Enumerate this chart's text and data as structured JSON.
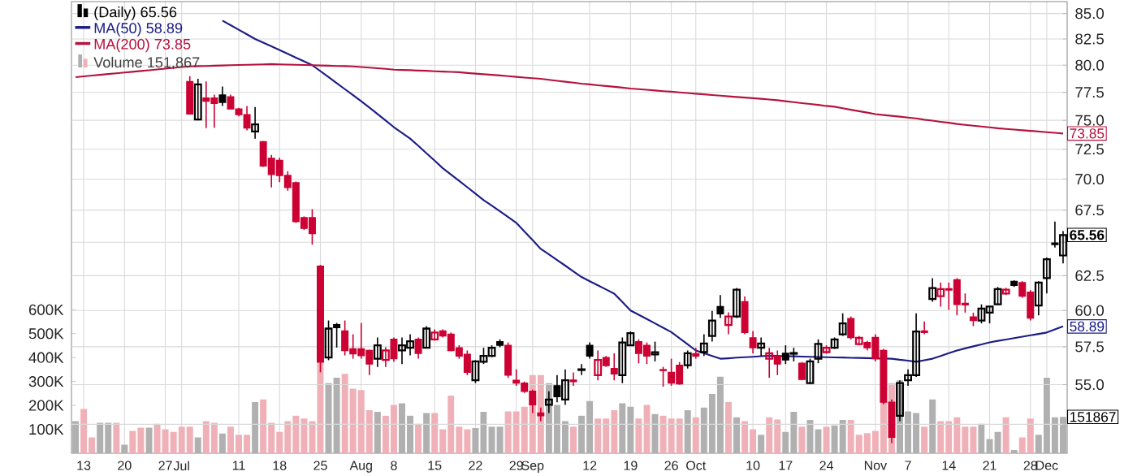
{
  "chart_data": {
    "type": "candlestick",
    "categories": [
      null,
      "13",
      null,
      null,
      null,
      null,
      "20",
      null,
      null,
      null,
      null,
      "27",
      null,
      "Jul",
      null,
      null,
      null,
      null,
      null,
      null,
      "11",
      null,
      null,
      null,
      null,
      "18",
      null,
      null,
      null,
      null,
      "25",
      null,
      null,
      null,
      null,
      "Aug",
      null,
      null,
      null,
      "8",
      null,
      null,
      null,
      null,
      "15",
      null,
      null,
      null,
      null,
      "22",
      null,
      null,
      null,
      null,
      "29",
      null,
      "Sep",
      null,
      null,
      null,
      null,
      null,
      null,
      "12",
      null,
      null,
      null,
      null,
      "19",
      null,
      null,
      null,
      null,
      "26",
      null,
      null,
      "Oct",
      null,
      null,
      null,
      null,
      null,
      null,
      "10",
      null,
      null,
      null,
      "17",
      null,
      null,
      null,
      null,
      "24",
      null,
      null,
      null,
      null,
      null,
      "Nov",
      null,
      null,
      null,
      "7",
      null,
      null,
      null,
      null,
      "14",
      null,
      null,
      null,
      null,
      "21",
      null,
      null,
      null,
      null,
      "28",
      null,
      "Dec",
      null,
      null
    ],
    "y2lim": [
      50.75,
      86.2
    ],
    "y2ticks": [
      {
        "value": 52.5,
        "label": null
      },
      {
        "value": 55,
        "label": "55.0"
      },
      57.5,
      {
        "value": 60,
        "label": "60.0"
      },
      62.5,
      {
        "value": 65,
        "label": null
      },
      67.5,
      {
        "value": 70,
        "label": "70.0"
      },
      72.5,
      {
        "value": 75,
        "label": "75.0"
      },
      77.5,
      {
        "value": 80,
        "label": "80.0"
      },
      82.5,
      {
        "value": 85,
        "label": "85.0"
      }
    ],
    "log": "y2",
    "ylim": [
      0,
      1888000
    ],
    "yticks": [
      {
        "value": 100000,
        "label": "100K"
      },
      {
        "value": 200000,
        "label": "200K"
      },
      {
        "value": 300000,
        "label": "300K"
      },
      {
        "value": 400000,
        "label": "400K"
      },
      {
        "value": 500000,
        "label": "500K"
      },
      {
        "value": 600000,
        "label": "600K"
      }
    ],
    "grid": true,
    "legend": "top left",
    "annotations": [
      "65.56",
      "58.89",
      "73.85",
      "151867"
    ],
    "series": [
      {
        "name": "(Daily) 65.56",
        "axis": "y2",
        "ohlc": [
          null,
          null,
          null,
          null,
          null,
          null,
          null,
          null,
          null,
          null,
          null,
          null,
          null,
          null,
          [
            78.49,
            78.98,
            75.5,
            75.55
          ],
          [
            75.07,
            78.74,
            75.0,
            78.24
          ],
          [
            77.0,
            78.49,
            74.32,
            76.7
          ],
          [
            77.0,
            77.3,
            74.35,
            76.5
          ],
          [
            77.26,
            78.05,
            76.27,
            76.6
          ],
          [
            77.1,
            77.3,
            75.97,
            76.0
          ],
          [
            76.0,
            76.1,
            75.35,
            75.5
          ],
          [
            75.5,
            76.27,
            74.11,
            74.32
          ],
          [
            74.01,
            76.17,
            73.41,
            74.64
          ],
          [
            73.14,
            73.2,
            71.0,
            71.08
          ],
          [
            71.73,
            72.01,
            69.32,
            70.38
          ],
          [
            71.55,
            71.78,
            69.75,
            70.3
          ],
          [
            70.3,
            70.65,
            69.05,
            69.32
          ],
          [
            69.7,
            69.8,
            66.5,
            66.6
          ],
          [
            66.9,
            67.0,
            65.95,
            66.07
          ],
          [
            66.9,
            67.57,
            64.82,
            65.66
          ],
          [
            63.2,
            63.3,
            55.8,
            56.47
          ],
          [
            56.78,
            59.3,
            56.6,
            58.74
          ],
          [
            59.02,
            59.13,
            57.45,
            58.8
          ],
          [
            58.58,
            59.3,
            56.92,
            57.25
          ],
          [
            57.36,
            58.35,
            56.7,
            57.03
          ],
          [
            57.36,
            59.13,
            56.7,
            56.9
          ],
          [
            57.25,
            57.3,
            55.62,
            56.35
          ],
          [
            56.7,
            58.13,
            56.16,
            57.6
          ],
          [
            56.62,
            57.47,
            56.16,
            57.25
          ],
          [
            58.0,
            58.13,
            56.5,
            56.7
          ],
          [
            57.25,
            58.13,
            56.35,
            57.6
          ],
          [
            57.43,
            58.35,
            56.92,
            57.87
          ],
          [
            58.0,
            58.13,
            56.7,
            57.06
          ],
          [
            57.43,
            58.91,
            57.4,
            58.74
          ],
          [
            58.0,
            58.69,
            57.9,
            58.47
          ],
          [
            58.58,
            58.69,
            58.13,
            58.24
          ],
          [
            58.35,
            58.47,
            57.2,
            57.25
          ],
          [
            57.43,
            57.6,
            56.7,
            56.88
          ],
          [
            56.99,
            57.25,
            55.62,
            55.8
          ],
          [
            55.28,
            56.6,
            55.1,
            56.52
          ],
          [
            56.5,
            57.43,
            56.35,
            56.88
          ],
          [
            56.88,
            57.6,
            56.8,
            57.43
          ],
          [
            57.85,
            58.0,
            57.47,
            57.6
          ],
          [
            57.6,
            57.79,
            55.44,
            55.62
          ],
          [
            55.28,
            56.0,
            54.93,
            55.1
          ],
          [
            55.1,
            55.2,
            54.47,
            54.57
          ],
          [
            54.57,
            54.68,
            53.2,
            53.71
          ],
          [
            53.2,
            53.54,
            52.7,
            53.03
          ],
          [
            53.71,
            54.57,
            53.2,
            54.05
          ],
          [
            54.93,
            55.62,
            53.88,
            54.23
          ],
          [
            54.05,
            56.0,
            53.71,
            55.28
          ],
          [
            55.3,
            55.8,
            54.93,
            55.2
          ],
          [
            55.95,
            56.35,
            55.62,
            56.0
          ],
          [
            57.6,
            57.79,
            56.7,
            56.88
          ],
          [
            55.62,
            57.25,
            55.28,
            56.62
          ],
          [
            56.78,
            56.88,
            56.16,
            56.24
          ],
          [
            56.05,
            57.06,
            55.28,
            55.7
          ],
          [
            55.62,
            58.13,
            55.1,
            57.79
          ],
          [
            57.6,
            58.54,
            57.57,
            58.43
          ],
          [
            57.85,
            58.0,
            56.39,
            57.06
          ],
          [
            57.6,
            57.79,
            56.35,
            56.88
          ],
          [
            56.99,
            57.85,
            56.52,
            57.13
          ],
          [
            55.98,
            56.16,
            54.87,
            55.92
          ],
          [
            55.8,
            56.7,
            54.93,
            55.1
          ],
          [
            56.27,
            56.48,
            55.0,
            55.05
          ],
          [
            56.27,
            57.25,
            56.05,
            57.06
          ],
          [
            57.03,
            57.43,
            56.7,
            56.88
          ],
          [
            57.14,
            58.35,
            56.88,
            57.72
          ],
          [
            58.24,
            59.97,
            57.85,
            59.3
          ],
          [
            60.27,
            61.1,
            59.47,
            59.76
          ],
          [
            58.99,
            59.87,
            58.35,
            59.58
          ],
          [
            59.58,
            61.6,
            59.47,
            61.49
          ],
          [
            60.62,
            61.0,
            58.35,
            58.47
          ],
          [
            58.1,
            58.58,
            57.06,
            57.43
          ],
          [
            57.43,
            58.13,
            56.88,
            57.72
          ],
          [
            56.7,
            57.43,
            55.44,
            57.06
          ],
          [
            56.88,
            57.25,
            55.62,
            56.35
          ],
          [
            57.06,
            57.6,
            56.35,
            56.62
          ],
          [
            57.03,
            57.43,
            56.52,
            57.08
          ],
          [
            56.4,
            56.48,
            55.28,
            55.34
          ],
          [
            55.1,
            56.7,
            55.05,
            56.52
          ],
          [
            56.7,
            58.0,
            56.4,
            57.7
          ],
          [
            57.14,
            57.6,
            57.03,
            57.43
          ],
          [
            57.43,
            58.13,
            57.36,
            58.0
          ],
          [
            58.35,
            59.8,
            58.24,
            59.1
          ],
          [
            59.44,
            59.58,
            58.0,
            58.13
          ],
          [
            57.68,
            58.24,
            57.6,
            58.1
          ],
          [
            57.79,
            57.9,
            57.25,
            57.43
          ],
          [
            58.13,
            58.35,
            56.52,
            56.7
          ],
          [
            57.25,
            57.36,
            53.74,
            53.88
          ],
          [
            53.88,
            54.05,
            51.36,
            51.7
          ],
          [
            53.03,
            55.28,
            52.7,
            55.1
          ],
          [
            55.28,
            56.0,
            54.93,
            55.62
          ],
          [
            55.62,
            59.8,
            55.5,
            58.54
          ],
          [
            58.58,
            59.23,
            58.35,
            58.47
          ],
          [
            60.82,
            62.32,
            60.62,
            61.6
          ],
          [
            61.02,
            62.0,
            60.27,
            61.52
          ],
          [
            61.55,
            62.0,
            60.05,
            61.45
          ],
          [
            62.2,
            62.32,
            59.66,
            60.43
          ],
          [
            60.5,
            61.21,
            59.85,
            60.4
          ],
          [
            59.55,
            59.85,
            58.91,
            59.3
          ],
          [
            59.3,
            60.43,
            59.1,
            60.13
          ],
          [
            59.85,
            60.3,
            59.1,
            60.27
          ],
          [
            60.43,
            61.68,
            60.4,
            61.52
          ],
          [
            61.21,
            61.62,
            61.1,
            61.48
          ],
          [
            62.08,
            62.16,
            61.68,
            61.8
          ],
          [
            62.0,
            62.1,
            60.9,
            61.02
          ],
          [
            61.3,
            61.45,
            59.3,
            59.47
          ],
          [
            60.35,
            62.1,
            59.66,
            62.0
          ],
          [
            62.32,
            63.85,
            61.21,
            63.72
          ],
          [
            64.95,
            66.6,
            64.6,
            64.82
          ],
          [
            64.0,
            65.85,
            63.4,
            65.56
          ]
        ],
        "colors": [
          null,
          null,
          null,
          null,
          null,
          null,
          null,
          null,
          null,
          null,
          null,
          null,
          null,
          null,
          "#cc0033",
          "#000000",
          "#cc0033",
          "#cc0033",
          "#000000",
          "#cc0033",
          "#cc0033",
          "#cc0033",
          "#000000",
          "#cc0033",
          "#cc0033",
          "#cc0033",
          "#cc0033",
          "#cc0033",
          "#cc0033",
          "#cc0033",
          "#cc0033",
          "#000000",
          "#000000",
          "#cc0033",
          "#cc0033",
          "#cc0033",
          "#cc0033",
          "#000000",
          "#cc0033",
          "#cc0033",
          "#000000",
          "#000000",
          "#cc0033",
          "#000000",
          "#cc0033",
          "#cc0033",
          "#cc0033",
          "#cc0033",
          "#cc0033",
          "#000000",
          "#000000",
          "#000000",
          "#000000",
          "#cc0033",
          "#cc0033",
          "#cc0033",
          "#cc0033",
          "#cc0033",
          "#000000",
          "#000000",
          "#000000",
          "#cc0033",
          "#000000",
          "#000000",
          "#cc0033",
          "#cc0033",
          "#cc0033",
          "#000000",
          "#000000",
          "#cc0033",
          "#cc0033",
          "#000000",
          "#cc0033",
          "#cc0033",
          "#cc0033",
          "#000000",
          "#cc0033",
          "#000000",
          "#000000",
          "#000000",
          "#cc0033",
          "#000000",
          "#cc0033",
          "#cc0033",
          "#000000",
          "#cc0033",
          "#cc0033",
          "#000000",
          "#000000",
          "#cc0033",
          "#000000",
          "#000000",
          "#cc0033",
          "#000000",
          "#000000",
          "#cc0033",
          "#cc0033",
          "#cc0033",
          "#cc0033",
          "#cc0033",
          "#cc0033",
          "#000000",
          "#000000",
          "#000000",
          "#cc0033",
          "#000000",
          "#cc0033",
          "#cc0033",
          "#cc0033",
          "#cc0033",
          "#cc0033",
          "#000000",
          "#000000",
          "#000000",
          "#cc0033",
          "#000000",
          "#cc0033",
          "#cc0033",
          "#000000",
          "#000000",
          "#000000",
          "#000000"
        ]
      },
      {
        "name": "MA(50) 58.89",
        "type": "line",
        "axis": "y2",
        "color": "#1c1c84",
        "values": [
          null,
          null,
          null,
          null,
          null,
          null,
          null,
          null,
          null,
          null,
          null,
          null,
          null,
          null,
          null,
          null,
          null,
          null,
          84.3,
          83.85,
          83.4,
          82.95,
          82.5,
          82.14,
          81.79,
          81.43,
          81.07,
          80.71,
          80.36,
          80.0,
          79.45,
          78.9,
          78.35,
          77.8,
          77.25,
          76.7,
          76.13,
          75.55,
          74.98,
          74.4,
          73.9,
          73.4,
          72.78,
          72.15,
          71.53,
          70.9,
          70.38,
          69.86,
          69.34,
          68.82,
          68.3,
          67.85,
          67.4,
          66.95,
          66.5,
          65.83,
          65.17,
          64.5,
          64.08,
          63.66,
          63.24,
          62.82,
          62.4,
          62.1,
          61.8,
          61.5,
          61.2,
          60.6,
          60.0,
          59.7,
          59.4,
          59.1,
          58.8,
          58.5,
          58.08,
          57.67,
          57.25,
          57.07,
          56.88,
          56.7,
          56.73,
          56.77,
          56.8,
          56.83,
          56.87,
          56.9,
          56.89,
          56.87,
          56.86,
          56.84,
          56.83,
          56.81,
          56.8,
          56.79,
          56.78,
          56.76,
          56.75,
          56.74,
          56.73,
          56.71,
          56.7,
          56.63,
          56.57,
          56.5,
          56.6,
          56.7,
          56.88,
          57.07,
          57.25,
          57.39,
          57.53,
          57.66,
          57.8,
          57.9,
          57.99,
          58.09,
          58.18,
          58.28,
          58.37,
          58.47,
          58.68,
          58.89
        ]
      },
      {
        "name": "MA(200) 73.85",
        "type": "line",
        "axis": "y2",
        "color": "#b5123e",
        "values": [
          78.9,
          78.97,
          79.04,
          79.11,
          79.19,
          79.26,
          79.33,
          79.4,
          79.47,
          79.54,
          79.61,
          79.69,
          79.76,
          79.83,
          79.9,
          79.92,
          79.94,
          79.96,
          79.98,
          80.0,
          80.02,
          80.04,
          80.06,
          80.08,
          80.1,
          80.08,
          80.06,
          80.04,
          80.02,
          80.0,
          79.98,
          79.96,
          79.94,
          79.92,
          79.9,
          79.84,
          79.78,
          79.72,
          79.66,
          79.6,
          79.57,
          79.54,
          79.51,
          79.48,
          79.44,
          79.41,
          79.38,
          79.35,
          79.29,
          79.23,
          79.17,
          79.11,
          79.05,
          78.99,
          78.93,
          78.86,
          78.8,
          78.74,
          78.65,
          78.56,
          78.48,
          78.39,
          78.3,
          78.23,
          78.15,
          78.08,
          78.0,
          77.93,
          77.85,
          77.79,
          77.73,
          77.67,
          77.61,
          77.56,
          77.5,
          77.44,
          77.38,
          77.32,
          77.26,
          77.2,
          77.14,
          77.09,
          77.03,
          76.97,
          76.92,
          76.86,
          76.78,
          76.7,
          76.61,
          76.53,
          76.45,
          76.37,
          76.28,
          76.2,
          76.07,
          75.94,
          75.81,
          75.68,
          75.55,
          75.47,
          75.39,
          75.32,
          75.24,
          75.16,
          75.06,
          74.97,
          74.87,
          74.78,
          74.68,
          74.6,
          74.53,
          74.45,
          74.38,
          74.3,
          74.24,
          74.19,
          74.13,
          74.08,
          74.02,
          73.96,
          73.91,
          73.85
        ]
      },
      {
        "name": "Volume 151,867",
        "type": "bar",
        "values": [
          134000,
          186000,
          66000,
          127000,
          127000,
          127000,
          36000,
          93000,
          107000,
          107000,
          123000,
          100000,
          89000,
          111000,
          111000,
          66000,
          134000,
          127000,
          82000,
          111000,
          77000,
          77000,
          214000,
          225000,
          127000,
          89000,
          134000,
          157000,
          145000,
          134000,
          389000,
          293000,
          316000,
          332000,
          270000,
          264000,
          180000,
          173000,
          157000,
          202000,
          209000,
          157000,
          123000,
          168000,
          168000,
          100000,
          241000,
          111000,
          100000,
          105000,
          173000,
          111000,
          111000,
          175000,
          175000,
          195000,
          327000,
          327000,
          293000,
          202000,
          134000,
          111000,
          157000,
          218000,
          145000,
          145000,
          180000,
          209000,
          195000,
          145000,
          202000,
          164000,
          157000,
          145000,
          145000,
          180000,
          150000,
          191000,
          248000,
          320000,
          214000,
          150000,
          134000,
          100000,
          77000,
          150000,
          141000,
          89000,
          173000,
          111000,
          139000,
          100000,
          111000,
          116000,
          139000,
          139000,
          77000,
          84000,
          93000,
          236000,
          293000,
          305000,
          175000,
          168000,
          111000,
          225000,
          134000,
          134000,
          150000,
          111000,
          111000,
          123000,
          59000,
          89000,
          150000,
          14000,
          66000,
          145000,
          77000,
          316000,
          150000,
          151867
        ],
        "colors": [
          "#b0b0b0",
          "#f0b0b8",
          "#f0b0b8",
          "#b0b0b0",
          "#b0b0b0",
          "#f0b0b8",
          "#b0b0b0",
          "#f0b0b8",
          "#f0b0b8",
          "#b0b0b0",
          "#f0b0b8",
          "#f0b0b8",
          "#f0b0b8",
          "#f0b0b8",
          "#f0b0b8",
          "#b0b0b0",
          "#f0b0b8",
          "#f0b0b8",
          "#b0b0b0",
          "#f0b0b8",
          "#f0b0b8",
          "#f0b0b8",
          "#b0b0b0",
          "#f0b0b8",
          "#f0b0b8",
          "#f0b0b8",
          "#f0b0b8",
          "#f0b0b8",
          "#f0b0b8",
          "#f0b0b8",
          "#f0b0b8",
          "#b0b0b0",
          "#b0b0b0",
          "#f0b0b8",
          "#f0b0b8",
          "#f0b0b8",
          "#f0b0b8",
          "#b0b0b0",
          "#f0b0b8",
          "#f0b0b8",
          "#b0b0b0",
          "#b0b0b0",
          "#f0b0b8",
          "#b0b0b0",
          "#f0b0b8",
          "#f0b0b8",
          "#f0b0b8",
          "#f0b0b8",
          "#f0b0b8",
          "#b0b0b0",
          "#b0b0b0",
          "#b0b0b0",
          "#b0b0b0",
          "#f0b0b8",
          "#f0b0b8",
          "#f0b0b8",
          "#f0b0b8",
          "#f0b0b8",
          "#b0b0b0",
          "#b0b0b0",
          "#b0b0b0",
          "#f0b0b8",
          "#b0b0b0",
          "#b0b0b0",
          "#f0b0b8",
          "#f0b0b8",
          "#f0b0b8",
          "#b0b0b0",
          "#b0b0b0",
          "#f0b0b8",
          "#f0b0b8",
          "#b0b0b0",
          "#f0b0b8",
          "#f0b0b8",
          "#f0b0b8",
          "#b0b0b0",
          "#f0b0b8",
          "#b0b0b0",
          "#b0b0b0",
          "#b0b0b0",
          "#f0b0b8",
          "#b0b0b0",
          "#f0b0b8",
          "#f0b0b8",
          "#b0b0b0",
          "#f0b0b8",
          "#f0b0b8",
          "#b0b0b0",
          "#b0b0b0",
          "#f0b0b8",
          "#b0b0b0",
          "#b0b0b0",
          "#f0b0b8",
          "#b0b0b0",
          "#b0b0b0",
          "#f0b0b8",
          "#f0b0b8",
          "#f0b0b8",
          "#f0b0b8",
          "#f0b0b8",
          "#f0b0b8",
          "#b0b0b0",
          "#b0b0b0",
          "#b0b0b0",
          "#f0b0b8",
          "#b0b0b0",
          "#f0b0b8",
          "#f0b0b8",
          "#f0b0b8",
          "#f0b0b8",
          "#f0b0b8",
          "#b0b0b0",
          "#b0b0b0",
          "#b0b0b0",
          "#f0b0b8",
          "#b0b0b0",
          "#f0b0b8",
          "#f0b0b8",
          "#b0b0b0",
          "#b0b0b0",
          "#b0b0b0",
          "#b0b0b0"
        ]
      }
    ]
  }
}
